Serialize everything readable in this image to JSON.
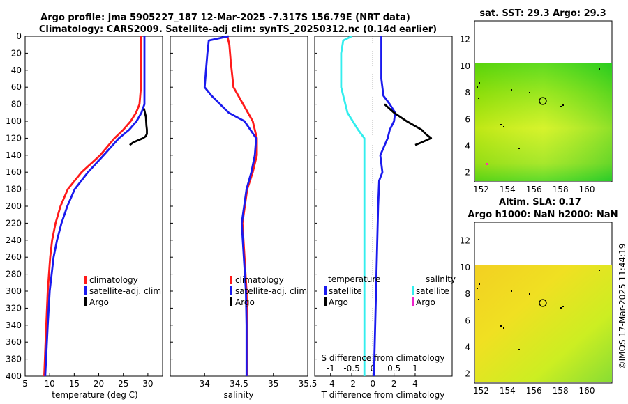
{
  "header": {
    "title_line1": "Argo profile: jma 5905227_187 12-Mar-2025 -7.317S 156.79E (NRT data)",
    "title_line2": "Climatology: CARS2009. Satellite-adj clim: synTS_20250312.nc (0.14d earlier)"
  },
  "colors": {
    "climatology": "#ff1a1a",
    "satellite": "#1a1aee",
    "argo": "#000000",
    "salinity_satellite": "#33eeee",
    "salinity_argo": "#ee22cc"
  },
  "chart_data": [
    {
      "type": "line",
      "name": "temperature-profile",
      "xlabel": "temperature (deg C)",
      "xlim": [
        5,
        33
      ],
      "ylim": [
        400,
        0
      ],
      "xticks": [
        "5",
        "10",
        "15",
        "20",
        "25",
        "30"
      ],
      "yticks": [
        "0",
        "20",
        "40",
        "60",
        "80",
        "100",
        "120",
        "140",
        "160",
        "180",
        "200",
        "220",
        "240",
        "260",
        "280",
        "300",
        "320",
        "340",
        "360",
        "380",
        "400"
      ],
      "legend": {
        "items": [
          "climatology",
          "satellite-adj. clim",
          "Argo"
        ],
        "placement": "bottom-right"
      },
      "series": [
        {
          "name": "climatology",
          "depth": [
            0,
            60,
            80,
            90,
            100,
            110,
            120,
            140,
            160,
            180,
            200,
            220,
            240,
            260,
            300,
            340,
            400
          ],
          "values": [
            28.6,
            28.6,
            28.3,
            27.6,
            26.5,
            25.0,
            23.2,
            20.3,
            16.5,
            13.7,
            12.2,
            11.2,
            10.5,
            10.1,
            9.6,
            9.3,
            8.9
          ]
        },
        {
          "name": "satellite-adj. clim",
          "depth": [
            0,
            60,
            80,
            90,
            100,
            110,
            120,
            140,
            160,
            180,
            200,
            220,
            240,
            260,
            300,
            340,
            400
          ],
          "values": [
            29.3,
            29.3,
            29.3,
            28.7,
            27.7,
            26.2,
            24.1,
            21.0,
            17.8,
            15.1,
            13.6,
            12.4,
            11.5,
            10.8,
            10.0,
            9.6,
            9.1
          ]
        },
        {
          "name": "Argo",
          "depth": [
            85,
            95,
            105,
            110,
            115,
            118,
            120,
            122,
            125,
            128
          ],
          "values": [
            29.2,
            29.6,
            29.7,
            29.8,
            29.8,
            29.5,
            29.0,
            28.2,
            27.0,
            26.3
          ]
        }
      ]
    },
    {
      "type": "line",
      "name": "salinity-profile",
      "xlabel": "salinity",
      "xlim": [
        33.5,
        35.5
      ],
      "ylim": [
        400,
        0
      ],
      "xticks": [
        "34",
        "34.5",
        "35",
        "35.5"
      ],
      "legend": {
        "items": [
          "climatology",
          "satellite-adj. clim",
          "Argo"
        ],
        "placement": "bottom-right"
      },
      "series": [
        {
          "name": "climatology",
          "depth": [
            0,
            10,
            30,
            60,
            80,
            100,
            120,
            140,
            160,
            180,
            220,
            260,
            300,
            340,
            400
          ],
          "values": [
            34.33,
            34.36,
            34.38,
            34.42,
            34.56,
            34.7,
            34.76,
            34.76,
            34.7,
            34.62,
            34.55,
            34.58,
            34.61,
            34.62,
            34.62
          ]
        },
        {
          "name": "satellite-adj. clim",
          "depth": [
            0,
            5,
            20,
            40,
            60,
            70,
            90,
            100,
            120,
            140,
            160,
            180,
            220,
            260,
            300,
            340,
            400
          ],
          "values": [
            34.35,
            34.06,
            34.04,
            34.02,
            34.0,
            34.1,
            34.35,
            34.58,
            34.75,
            34.73,
            34.68,
            34.61,
            34.54,
            34.57,
            34.6,
            34.61,
            34.61
          ]
        }
      ]
    },
    {
      "type": "line",
      "name": "difference-profile",
      "xlabel": "T difference from climatology",
      "secondary_xlabel": "S difference from climatology",
      "xlim": [
        -5.5,
        7.5
      ],
      "xticks": [
        "-4",
        "-2",
        "0",
        "2",
        "4"
      ],
      "secondary_xticks": [
        "-1",
        "-0.5",
        "0",
        "0.5",
        "1"
      ],
      "legend": {
        "temperature_title": "temperature",
        "temperature_items": [
          "satellite",
          "Argo"
        ],
        "salinity_title": "salinity",
        "salinity_items": [
          "satellite",
          "Argo"
        ],
        "placement": "bottom"
      },
      "series": [
        {
          "name": "temperature satellite",
          "depth": [
            0,
            50,
            70,
            80,
            90,
            100,
            110,
            120,
            140,
            160,
            170,
            200,
            250,
            300,
            350,
            400
          ],
          "values": [
            0.8,
            0.8,
            1.0,
            1.6,
            2.1,
            2.0,
            1.6,
            1.4,
            0.7,
            0.9,
            0.6,
            0.5,
            0.4,
            0.3,
            0.2,
            0.1
          ]
        },
        {
          "name": "temperature Argo",
          "depth": [
            80,
            90,
            100,
            110,
            115,
            120,
            125,
            128
          ],
          "values": [
            1.1,
            2.0,
            3.2,
            4.6,
            5.0,
            5.5,
            4.6,
            4.0
          ]
        },
        {
          "name": "salinity satellite",
          "depth": [
            0,
            5,
            20,
            60,
            90,
            110,
            120,
            160,
            300,
            400
          ],
          "values": [
            -0.5,
            -0.7,
            -0.75,
            -0.75,
            -0.6,
            -0.35,
            -0.2,
            -0.2,
            -0.2,
            -0.2
          ]
        }
      ]
    },
    {
      "type": "heatmap",
      "name": "sat-sst-map",
      "title": "sat. SST: 29.3 Argo: 29.3",
      "xlim": [
        151.5,
        161.9
      ],
      "ylim": [
        1.3,
        13.4
      ],
      "xticks": [
        "152",
        "154",
        "156",
        "158",
        "160"
      ],
      "yticks": [
        "2",
        "4",
        "6",
        "8",
        "10",
        "12"
      ],
      "argo_location": {
        "lon": 156.79,
        "lat": 7.317
      }
    },
    {
      "type": "heatmap",
      "name": "altim-sla-map",
      "title_line1": "Altim. SLA: 0.17",
      "title_line2": "Argo h1000: NaN h2000: NaN",
      "xlim": [
        151.5,
        161.9
      ],
      "ylim": [
        1.3,
        13.4
      ],
      "xticks": [
        "152",
        "154",
        "156",
        "158",
        "160"
      ],
      "yticks": [
        "2",
        "4",
        "6",
        "8",
        "10",
        "12"
      ],
      "argo_location": {
        "lon": 156.79,
        "lat": 7.317
      }
    }
  ],
  "footer": {
    "credit": "©IMOS 17-Mar-2025 11:44:19"
  }
}
